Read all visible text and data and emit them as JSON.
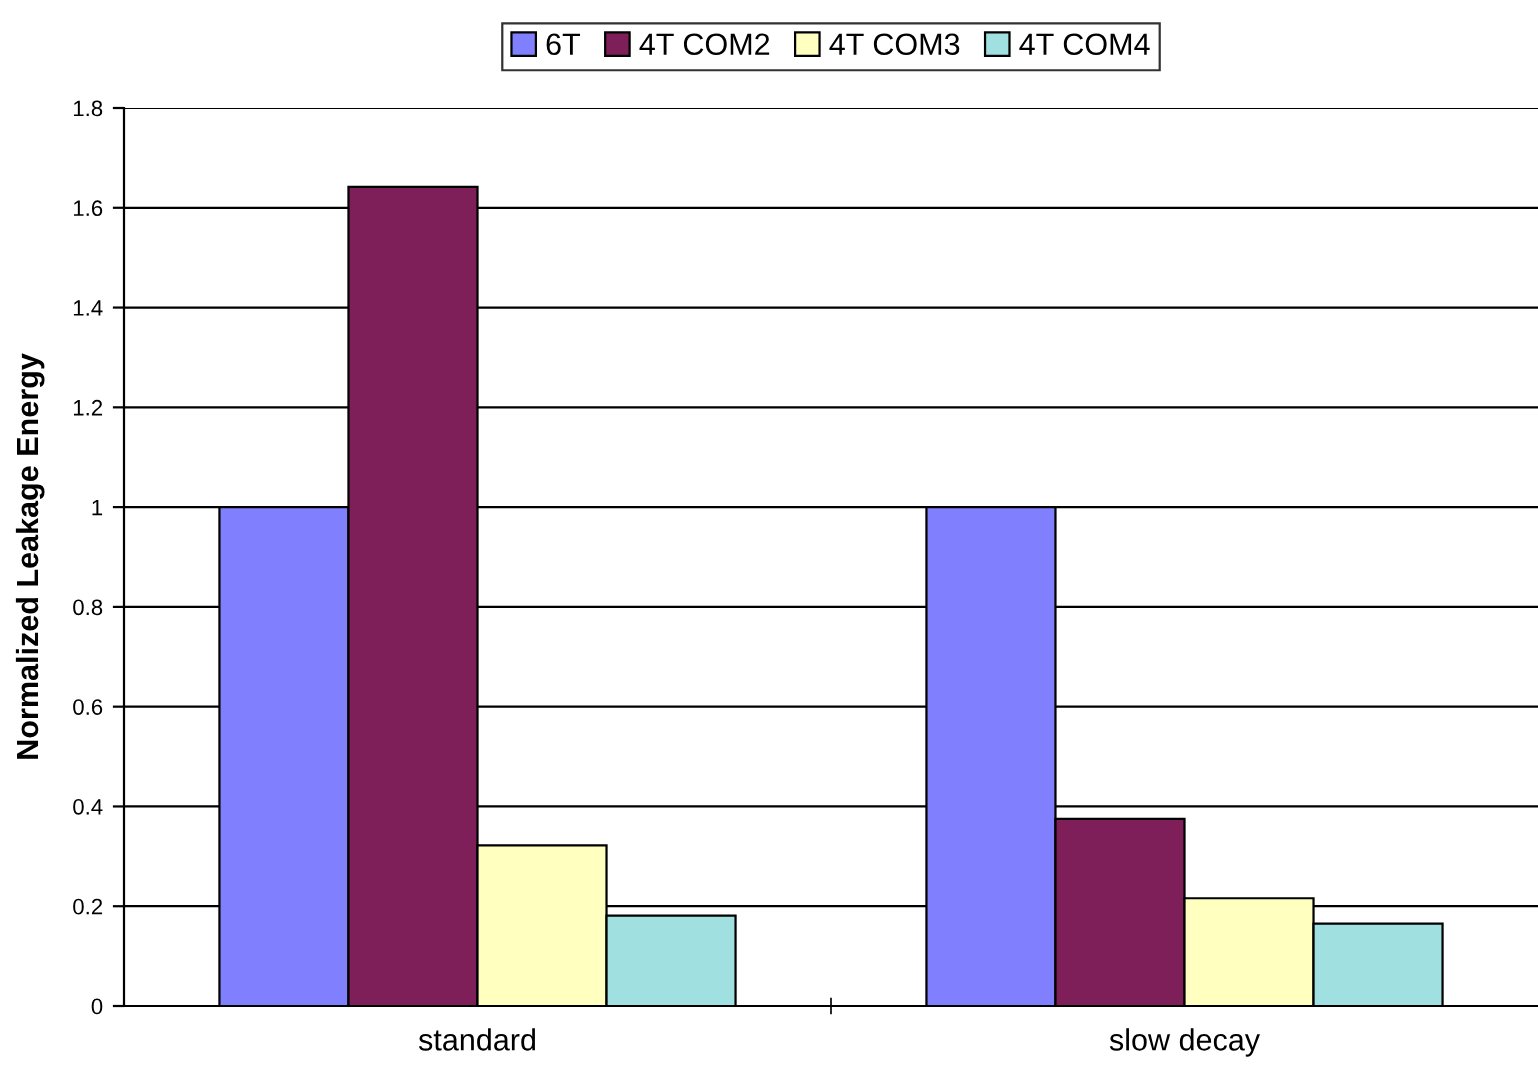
{
  "chart_data": {
    "type": "bar",
    "ylabel": "Normalized Leakage Energy",
    "categories": [
      "standard",
      "slow decay"
    ],
    "series": [
      {
        "name": "6T",
        "color": "#8080ff",
        "values": [
          1.0,
          1.0
        ]
      },
      {
        "name": "4T COM2",
        "color": "#7f1f5a",
        "values": [
          1.642,
          0.375
        ]
      },
      {
        "name": "4T COM3",
        "color": "#ffffc0",
        "values": [
          0.322,
          0.216
        ]
      },
      {
        "name": "4T COM4",
        "color": "#a0e0e0",
        "values": [
          0.181,
          0.165
        ]
      }
    ],
    "ylim": [
      0,
      1.8
    ],
    "yticks": [
      0,
      0.2,
      0.4,
      0.6,
      0.8,
      1,
      1.2,
      1.4,
      1.6,
      1.8
    ],
    "grid": "y",
    "legend": "top"
  }
}
